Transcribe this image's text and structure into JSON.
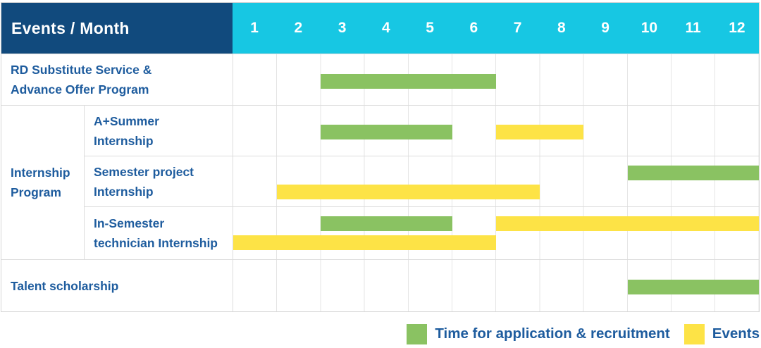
{
  "header": {
    "title": "Events / Month"
  },
  "colors": {
    "header_bg": "#114A7D",
    "month_strip_bg": "#17C7E3",
    "header_text": "#FFFFFF",
    "label_text": "#1E5C9E",
    "bar_green": "#8AC262",
    "bar_yellow": "#FDE346"
  },
  "chart_data": {
    "type": "gantt",
    "title": "Events / Month",
    "x_unit": "month",
    "x_categories": [
      "1",
      "2",
      "3",
      "4",
      "5",
      "6",
      "7",
      "8",
      "9",
      "10",
      "11",
      "12"
    ],
    "x_range": [
      1,
      12
    ],
    "grid": true,
    "legend_position": "bottom-right",
    "legend": [
      {
        "key": "recruitment",
        "label": "Time for application & recruitment",
        "color": "#8AC262"
      },
      {
        "key": "event",
        "label": "Events",
        "color": "#FDE346"
      }
    ],
    "row_group": {
      "label": "Internship\nProgram",
      "member_rows": [
        "A+Summer Internship",
        "Semester project Internship",
        "In-Semester technician Internship"
      ]
    },
    "rows": [
      {
        "label": "RD Substitute Service &\nAdvance Offer Program",
        "group": null,
        "tracks": 1,
        "bars": [
          {
            "kind": "recruitment",
            "start_month": 3,
            "end_month": 6,
            "track": 0
          }
        ]
      },
      {
        "label": "A+Summer\nInternship",
        "group": "Internship Program",
        "tracks": 1,
        "bars": [
          {
            "kind": "recruitment",
            "start_month": 3,
            "end_month": 5,
            "track": 0
          },
          {
            "kind": "event",
            "start_month": 7,
            "end_month": 8,
            "track": 0
          }
        ]
      },
      {
        "label": "Semester project\nInternship",
        "group": "Internship Program",
        "tracks": 2,
        "bars": [
          {
            "kind": "recruitment",
            "start_month": 10,
            "end_month": 12,
            "track": 0
          },
          {
            "kind": "event",
            "start_month": 2,
            "end_month": 7,
            "track": 1
          }
        ]
      },
      {
        "label": "In-Semester\ntechnician Internship",
        "group": "Internship Program",
        "tracks": 2,
        "bars": [
          {
            "kind": "recruitment",
            "start_month": 3,
            "end_month": 5,
            "track": 0
          },
          {
            "kind": "event",
            "start_month": 7,
            "end_month": 12,
            "track": 0
          },
          {
            "kind": "event",
            "start_month": 1,
            "end_month": 6,
            "track": 1
          }
        ]
      },
      {
        "label": "Talent scholarship",
        "group": null,
        "tracks": 1,
        "bars": [
          {
            "kind": "recruitment",
            "start_month": 10,
            "end_month": 12,
            "track": 0
          }
        ]
      }
    ]
  }
}
